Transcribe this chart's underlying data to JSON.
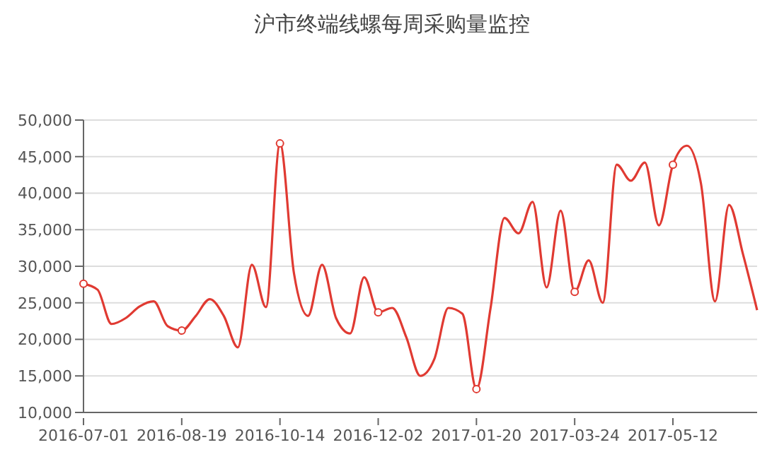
{
  "chart_data": {
    "type": "line",
    "title": "沪市终端线螺每周采购量监控",
    "categories": [
      "2016-07-01",
      null,
      null,
      null,
      null,
      null,
      null,
      "2016-08-19",
      null,
      null,
      null,
      null,
      null,
      null,
      "2016-10-14",
      null,
      null,
      null,
      null,
      null,
      null,
      "2016-12-02",
      null,
      null,
      null,
      null,
      null,
      null,
      "2017-01-20",
      null,
      null,
      null,
      null,
      null,
      null,
      "2017-03-24",
      null,
      null,
      null,
      null,
      null,
      null,
      "2017-05-12",
      null,
      null,
      null,
      null,
      null,
      null
    ],
    "series": [
      {
        "color": "#e03a32",
        "values": [
          27600,
          26800,
          22100,
          22900,
          24500,
          25200,
          21800,
          21200,
          23200,
          25500,
          23200,
          18900,
          30200,
          24400,
          46800,
          29000,
          23200,
          30200,
          22900,
          20800,
          28500,
          23700,
          24300,
          20300,
          15000,
          17300,
          24300,
          23500,
          13200,
          24200,
          36600,
          34500,
          38800,
          27100,
          37600,
          26500,
          30800,
          25000,
          43900,
          41700,
          44200,
          35600,
          43900,
          46500,
          41300,
          25200,
          38400,
          31600,
          24000
        ]
      }
    ],
    "ylim": [
      10000,
      50000
    ],
    "yticks": [
      {
        "value": 10000,
        "label": "10,000"
      },
      {
        "value": 15000,
        "label": "15,000"
      },
      {
        "value": 20000,
        "label": "20,000"
      },
      {
        "value": 25000,
        "label": "25,000"
      },
      {
        "value": 30000,
        "label": "30,000"
      },
      {
        "value": 35000,
        "label": "35,000"
      },
      {
        "value": 40000,
        "label": "40,000"
      },
      {
        "value": 45000,
        "label": "45,000"
      },
      {
        "value": 50000,
        "label": "50,000"
      }
    ],
    "grid": "y",
    "line_style": "solid",
    "legend": false
  }
}
